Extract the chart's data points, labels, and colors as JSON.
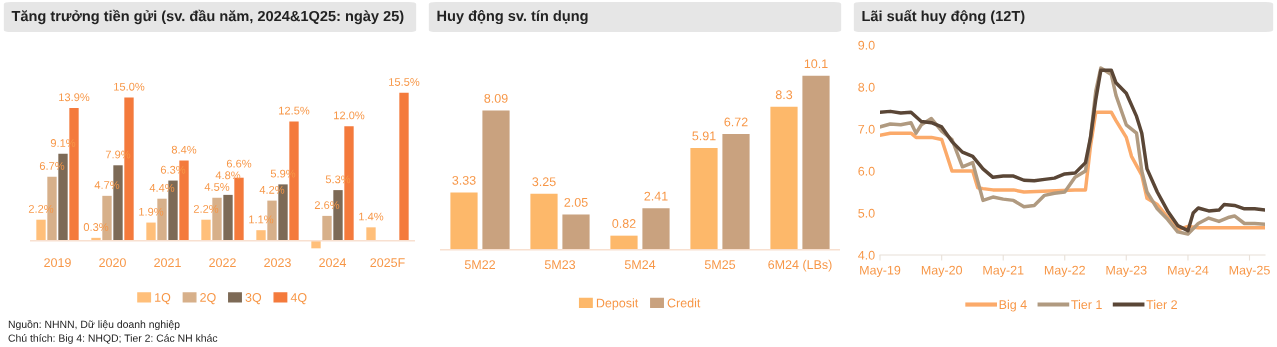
{
  "chart_data": [
    {
      "type": "bar",
      "title": "Tăng trưởng tiền gửi (sv. đầu năm, 2024&1Q25: ngày 25)",
      "categories": [
        "2019",
        "2020",
        "2021",
        "2022",
        "2023",
        "2024",
        "2025F"
      ],
      "legend": "bottom",
      "series": [
        {
          "name": "1Q",
          "color": "#ffbf7a",
          "values": [
            2.2,
            0.3,
            1.9,
            2.2,
            1.1,
            -0.8,
            1.4
          ],
          "value_labels": [
            "2.2%",
            "0.3%",
            "1.9%",
            "2.2%",
            "1.1%",
            null,
            "1.4%"
          ]
        },
        {
          "name": "2Q",
          "color": "#d7b08a",
          "values": [
            6.7,
            4.7,
            4.4,
            4.5,
            4.2,
            2.6,
            null
          ],
          "value_labels": [
            "6.7%",
            "4.7%",
            "4.4%",
            "4.5%",
            "4.2%",
            "2.6%",
            null
          ]
        },
        {
          "name": "3Q",
          "color": "#7d6a56",
          "values": [
            9.1,
            7.9,
            6.3,
            4.8,
            5.9,
            5.3,
            null
          ],
          "value_labels": [
            "9.1%",
            "7.9%",
            "6.3%",
            "4.8%",
            "5.9%",
            "5.3%",
            null
          ]
        },
        {
          "name": "4Q",
          "color": "#f47a3c",
          "values": [
            13.9,
            15.0,
            8.4,
            6.6,
            12.5,
            12.0,
            15.5
          ],
          "value_labels": [
            "13.9%",
            "15.0%",
            "8.4%",
            "6.6%",
            "12.5%",
            "12.0%",
            "15.5%"
          ]
        }
      ],
      "annotations": [
        "Nguồn: NHNN, Dữ liệu doanh nghiệp",
        "Chú thích: Big 4: NHQD; Tier 2: Các NH khác"
      ]
    },
    {
      "type": "bar",
      "title": "Huy động sv. tín dụng",
      "categories": [
        "5M22",
        "5M23",
        "5M24",
        "5M25",
        "6M24 (LBs)"
      ],
      "legend": "bottom",
      "data_labels": true,
      "series": [
        {
          "name": "Deposit",
          "color": "#fdb86a",
          "values": [
            3.33,
            3.25,
            0.82,
            5.91,
            8.3
          ]
        },
        {
          "name": "Credit",
          "color": "#c9a27f",
          "values": [
            8.09,
            2.05,
            2.41,
            6.72,
            10.1
          ]
        }
      ]
    },
    {
      "type": "line",
      "title": "Lãi suất huy động (12T)",
      "legend": "bottom",
      "ylim": [
        4,
        9
      ],
      "yticks": [
        {
          "value": 4,
          "label": "4.0"
        },
        {
          "value": 5,
          "label": "5.0"
        },
        {
          "value": 6,
          "label": "6.0"
        },
        {
          "value": 7,
          "label": "7.0"
        },
        {
          "value": 8,
          "label": "8.0"
        },
        {
          "value": 9,
          "label": "9.0"
        }
      ],
      "xlim": [
        "2019-05",
        "2025-08"
      ],
      "xticks": [
        {
          "value": "2019-05",
          "label": "May-19"
        },
        {
          "value": "2020-05",
          "label": "May-20"
        },
        {
          "value": "2021-05",
          "label": "May-21"
        },
        {
          "value": "2022-05",
          "label": "May-22"
        },
        {
          "value": "2023-05",
          "label": "May-23"
        },
        {
          "value": "2024-05",
          "label": "May-24"
        },
        {
          "value": "2025-05",
          "label": "May-25"
        }
      ],
      "series": [
        {
          "name": "Big 4",
          "color": "#fbaa6a",
          "x": [
            "2019-05",
            "2019-07",
            "2019-09",
            "2019-11",
            "2019-12",
            "2020-03",
            "2020-05",
            "2020-07",
            "2020-09",
            "2020-11",
            "2020-12",
            "2021-01",
            "2021-03",
            "2021-07",
            "2021-09",
            "2022-07",
            "2022-09",
            "2022-10",
            "2022-11",
            "2023-02",
            "2023-03",
            "2023-05",
            "2023-06",
            "2023-08",
            "2023-09",
            "2023-11",
            "2024-01",
            "2024-03",
            "2024-05",
            "2024-07",
            "2025-08"
          ],
          "values": [
            6.85,
            6.9,
            6.9,
            6.9,
            6.8,
            6.8,
            6.75,
            6.0,
            6.0,
            6.0,
            5.6,
            5.58,
            5.55,
            5.55,
            5.5,
            5.55,
            5.55,
            6.6,
            7.4,
            7.4,
            7.2,
            6.8,
            6.35,
            5.9,
            5.35,
            5.2,
            4.9,
            4.6,
            4.68,
            4.65,
            4.65
          ]
        },
        {
          "name": "Tier 1",
          "color": "#b09a80",
          "x": [
            "2019-05",
            "2019-07",
            "2019-09",
            "2019-11",
            "2019-12",
            "2020-01",
            "2020-03",
            "2020-05",
            "2020-07",
            "2020-09",
            "2020-11",
            "2021-01",
            "2021-03",
            "2021-05",
            "2021-07",
            "2021-09",
            "2021-11",
            "2022-01",
            "2022-03",
            "2022-05",
            "2022-07",
            "2022-09",
            "2022-10",
            "2022-11",
            "2022-12",
            "2023-02",
            "2023-03",
            "2023-05",
            "2023-07",
            "2023-08",
            "2023-09",
            "2023-11",
            "2024-01",
            "2024-03",
            "2024-05",
            "2024-07",
            "2024-09",
            "2024-11",
            "2025-01",
            "2025-02",
            "2025-04",
            "2025-06",
            "2025-08"
          ],
          "values": [
            7.05,
            7.12,
            7.1,
            7.15,
            6.9,
            7.1,
            7.25,
            6.95,
            6.75,
            6.1,
            6.2,
            5.3,
            5.38,
            5.33,
            5.3,
            5.15,
            5.18,
            5.42,
            5.47,
            5.5,
            5.85,
            6.0,
            6.8,
            7.9,
            8.45,
            8.3,
            7.8,
            7.1,
            6.9,
            6.0,
            5.5,
            5.1,
            4.85,
            4.55,
            4.5,
            4.75,
            4.88,
            4.8,
            4.9,
            4.93,
            4.75,
            4.75,
            4.73
          ]
        },
        {
          "name": "Tier 2",
          "color": "#5a4636",
          "x": [
            "2019-05",
            "2019-07",
            "2019-09",
            "2019-11",
            "2020-01",
            "2020-03",
            "2020-05",
            "2020-07",
            "2020-09",
            "2020-11",
            "2021-01",
            "2021-03",
            "2021-05",
            "2021-07",
            "2021-09",
            "2021-11",
            "2022-01",
            "2022-03",
            "2022-05",
            "2022-07",
            "2022-09",
            "2022-10",
            "2022-11",
            "2022-12",
            "2023-02",
            "2023-03",
            "2023-05",
            "2023-07",
            "2023-08",
            "2023-09",
            "2023-11",
            "2024-01",
            "2024-03",
            "2024-05",
            "2024-06",
            "2024-07",
            "2024-09",
            "2024-11",
            "2024-12",
            "2025-02",
            "2025-04",
            "2025-06",
            "2025-08"
          ],
          "values": [
            7.4,
            7.42,
            7.38,
            7.4,
            7.18,
            7.15,
            7.05,
            6.7,
            6.45,
            6.35,
            6.05,
            5.85,
            5.88,
            5.88,
            5.78,
            5.77,
            5.8,
            5.83,
            5.93,
            5.95,
            6.2,
            6.8,
            7.7,
            8.4,
            8.4,
            8.1,
            7.85,
            7.3,
            6.9,
            6.05,
            5.5,
            5.05,
            4.7,
            4.58,
            5.0,
            5.12,
            5.05,
            5.07,
            5.2,
            5.18,
            5.1,
            5.1,
            5.07
          ]
        }
      ]
    }
  ]
}
